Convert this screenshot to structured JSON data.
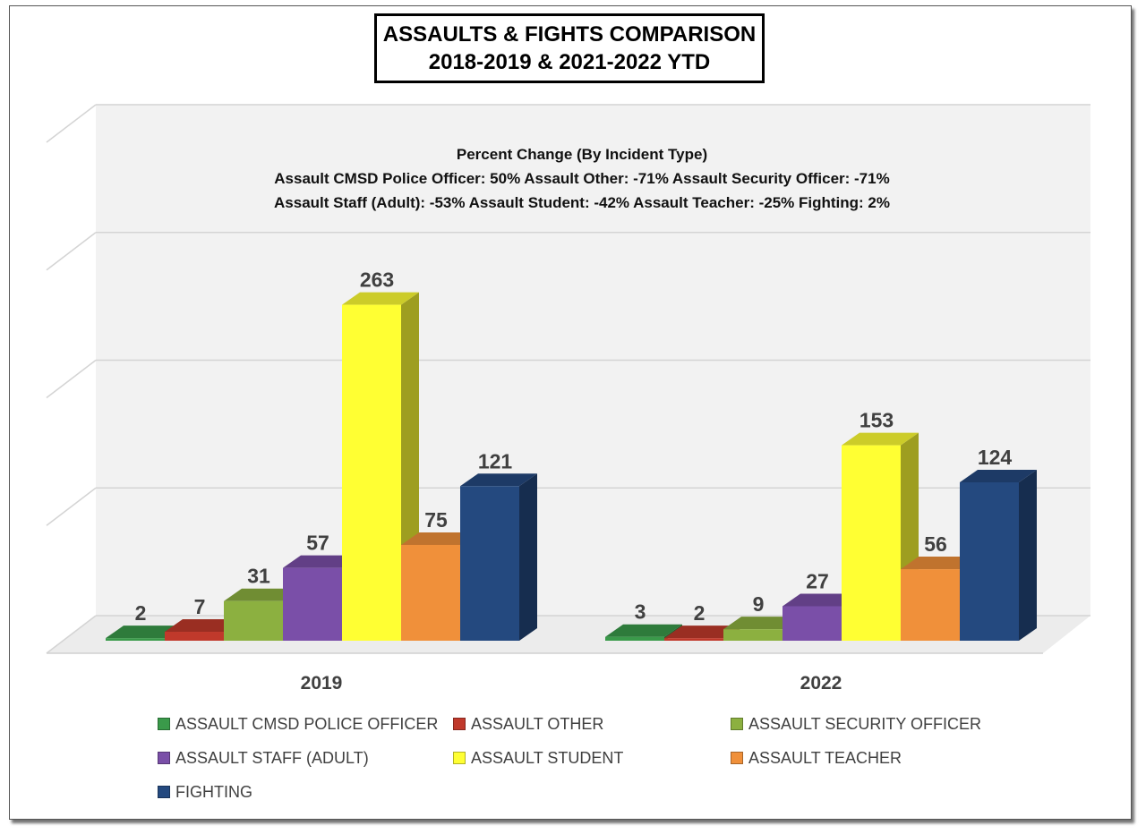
{
  "title": {
    "line1": "ASSAULTS & FIGHTS COMPARISON",
    "line2": "2018-2019 & 2021-2022 YTD"
  },
  "annotation": {
    "heading": "Percent Change (By Incident Type)",
    "line1": "Assault CMSD Police Officer:  50%  Assault Other:  -71%  Assault Security Officer:  -71%",
    "line2": "Assault Staff (Adult):  -53%  Assault Student:  -42%  Assault Teacher:  -25%  Fighting:  2%"
  },
  "chart_data": {
    "type": "bar",
    "style": "3d-clustered-column",
    "title": "ASSAULTS & FIGHTS COMPARISON 2018-2019 & 2021-2022 YTD",
    "categories": [
      "2019",
      "2022"
    ],
    "ylim": [
      0,
      400
    ],
    "grid": true,
    "legend_position": "bottom",
    "series": [
      {
        "name": "ASSAULT CMSD POLICE OFFICER",
        "color": "#3a9a4a",
        "values": [
          2,
          3
        ]
      },
      {
        "name": "ASSAULT OTHER",
        "color": "#c0392b",
        "values": [
          7,
          2
        ]
      },
      {
        "name": "ASSAULT SECURITY OFFICER",
        "color": "#8cb040",
        "values": [
          31,
          9
        ]
      },
      {
        "name": "ASSAULT STAFF (ADULT)",
        "color": "#7a4fa8",
        "values": [
          57,
          27
        ]
      },
      {
        "name": "ASSAULT STUDENT",
        "color": "#ffff33",
        "values": [
          263,
          153
        ]
      },
      {
        "name": "ASSAULT TEACHER",
        "color": "#f0903a",
        "values": [
          75,
          56
        ]
      },
      {
        "name": "FIGHTING",
        "color": "#24497f",
        "values": [
          121,
          124
        ]
      }
    ]
  }
}
